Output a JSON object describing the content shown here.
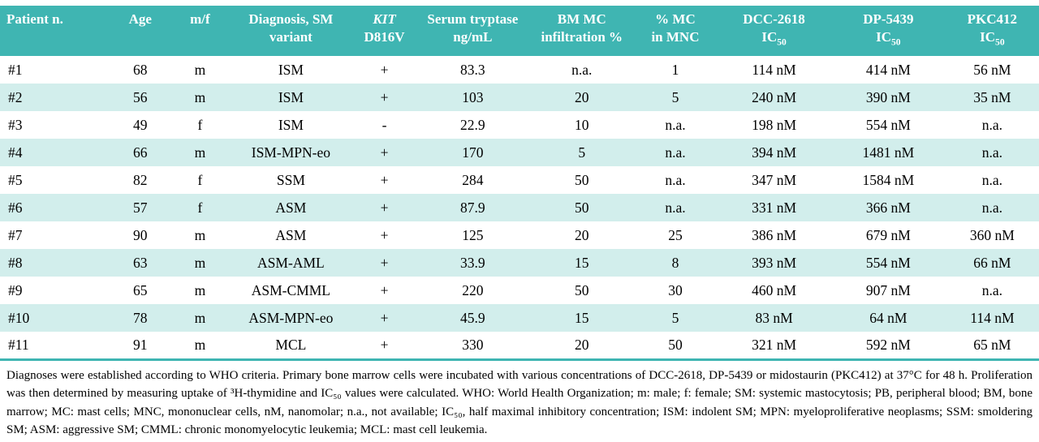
{
  "colors": {
    "header_bg": "#3fb5b2",
    "row_alt": "#d2eeec",
    "header_text": "#ffffff",
    "body_text": "#000000"
  },
  "table": {
    "columns": [
      {
        "id": "patient-n",
        "line1": "Patient n.",
        "width": "10.5%",
        "align": "left"
      },
      {
        "id": "age",
        "line1": "Age",
        "width": "6%"
      },
      {
        "id": "sex",
        "line1": "m/f",
        "width": "5.5%"
      },
      {
        "id": "diagnosis",
        "line1": "Diagnosis, SM",
        "line2": "variant",
        "width": "12%"
      },
      {
        "id": "kit-d816v",
        "line1": "KIT",
        "line1_italic": true,
        "line2": "D816V",
        "width": "6%"
      },
      {
        "id": "serum-tryptase",
        "line1": "Serum tryptase",
        "line2": "ng/mL",
        "width": "11%"
      },
      {
        "id": "bm-mc-infiltration",
        "line1": "BM MC",
        "line2": "infiltration %",
        "width": "10%"
      },
      {
        "id": "mc-in-mnc",
        "line1": "% MC",
        "line2": "in MNC",
        "width": "8%"
      },
      {
        "id": "dcc-2618-ic50",
        "line1": "DCC-2618",
        "line2": "IC",
        "line2_sub": "50",
        "width": "11%"
      },
      {
        "id": "dp-5439-ic50",
        "line1": "DP-5439",
        "line2": "IC",
        "line2_sub": "50",
        "width": "11%"
      },
      {
        "id": "pkc412-ic50",
        "line1": "PKC412",
        "line2": "IC",
        "line2_sub": "50",
        "width": "9%"
      }
    ],
    "rows": [
      [
        "#1",
        "68",
        "m",
        "ISM",
        "+",
        "83.3",
        "n.a.",
        "1",
        "114 nM",
        "414 nM",
        "56 nM"
      ],
      [
        "#2",
        "56",
        "m",
        "ISM",
        "+",
        "103",
        "20",
        "5",
        "240 nM",
        "390 nM",
        "35 nM"
      ],
      [
        "#3",
        "49",
        "f",
        "ISM",
        "-",
        "22.9",
        "10",
        "n.a.",
        "198 nM",
        "554 nM",
        "n.a."
      ],
      [
        "#4",
        "66",
        "m",
        "ISM-MPN-eo",
        "+",
        "170",
        "5",
        "n.a.",
        "394 nM",
        "1481 nM",
        "n.a."
      ],
      [
        "#5",
        "82",
        "f",
        "SSM",
        "+",
        "284",
        "50",
        "n.a.",
        "347 nM",
        "1584 nM",
        "n.a."
      ],
      [
        "#6",
        "57",
        "f",
        "ASM",
        "+",
        "87.9",
        "50",
        "n.a.",
        "331 nM",
        "366 nM",
        "n.a."
      ],
      [
        "#7",
        "90",
        "m",
        "ASM",
        "+",
        "125",
        "20",
        "25",
        "386 nM",
        "679 nM",
        "360 nM"
      ],
      [
        "#8",
        "63",
        "m",
        "ASM-AML",
        "+",
        "33.9",
        "15",
        "8",
        "393 nM",
        "554 nM",
        "66 nM"
      ],
      [
        "#9",
        "65",
        "m",
        "ASM-CMML",
        "+",
        "220",
        "50",
        "30",
        "460 nM",
        "907 nM",
        "n.a."
      ],
      [
        "#10",
        "78",
        "m",
        "ASM-MPN-eo",
        "+",
        "45.9",
        "15",
        "5",
        "83 nM",
        "64 nM",
        "114 nM"
      ],
      [
        "#11",
        "91",
        "m",
        "MCL",
        "+",
        "330",
        "20",
        "50",
        "321 nM",
        "592 nM",
        "65 nM"
      ]
    ]
  },
  "footnote": "Diagnoses were established according to WHO criteria. Primary bone marrow cells were incubated with various concentrations of DCC-2618, DP-5439 or midostaurin (PKC412) at 37°C for 48 h. Proliferation was then determined by measuring uptake of ³H-thymidine and IC₅₀ values were calculated. WHO: World Health Organization; m: male; f: female; SM: systemic mastocytosis; PB, peripheral blood; BM, bone marrow; MC: mast cells; MNC, mononuclear cells, nM, nanomolar; n.a., not available; IC₅₀, half maximal inhibitory concentration; ISM: indolent SM; MPN: myeloproliferative neoplasms; SSM: smoldering SM; ASM: aggressive SM; CMML: chronic monomyelocytic leukemia; MCL: mast cell leukemia."
}
